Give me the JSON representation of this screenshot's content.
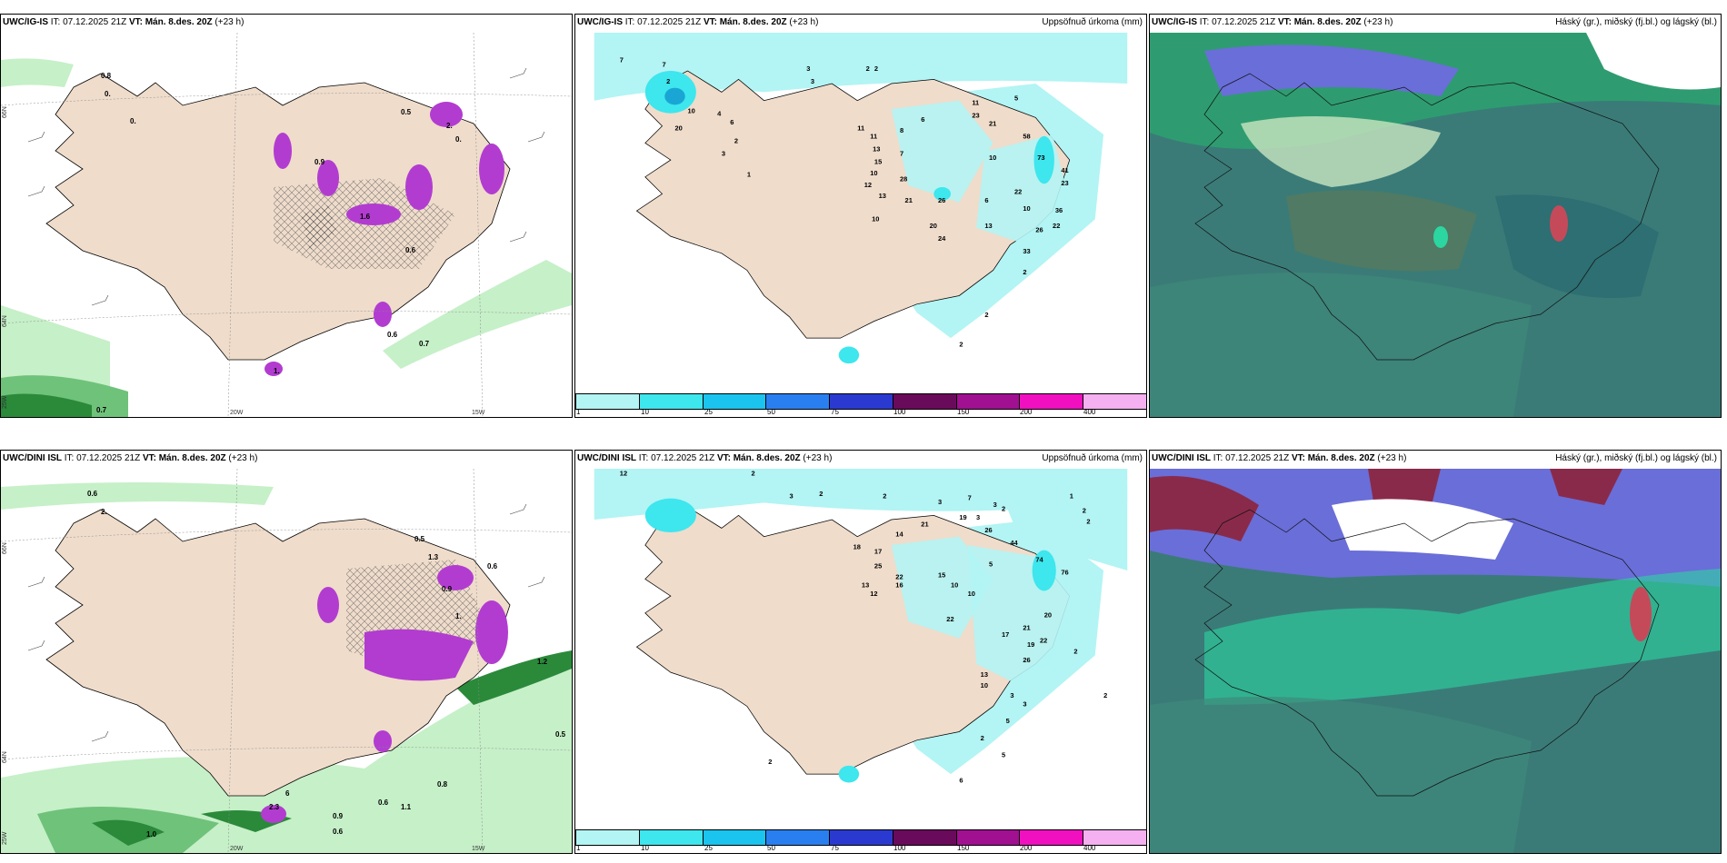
{
  "colors": {
    "land": "#efdccb",
    "sea": "#ffffff",
    "precip_light": "#b3f4f4",
    "precip_mid": "#3ee6ee",
    "purple": "#b23cd0",
    "green_light": "#c6f0c8",
    "green_dark": "#2a8a3a",
    "cloud_teal": "#3a7b78"
  },
  "icons": [
    "wind-barb-icon"
  ],
  "panels": [
    {
      "model": "UWC/IG-IS",
      "it": " IT: 07.12.2025 21Z ",
      "vt_label": "VT:",
      "vt_value": " Mán. 8.des. 20Z",
      "lead": " (+23 h)",
      "title_right": "",
      "lat_labels": [
        "66N",
        "64N",
        "25W"
      ],
      "lon_labels": [
        "20W",
        "15W"
      ],
      "values": [
        "0.8",
        "0.",
        "0.",
        "0.5",
        "2.",
        "0.",
        "0.7",
        "0.7",
        "0.6",
        "1.",
        "0.9",
        "1.6",
        "0.6"
      ]
    },
    {
      "model": "UWC/IG-IS",
      "it": " IT: 07.12.2025 21Z ",
      "vt_label": "VT:",
      "vt_value": " Mán. 8.des. 20Z",
      "lead": " (+23 h)",
      "title_right": "Uppsöfnuð úrkoma (mm)",
      "values": [
        "7",
        "7",
        "3",
        "3",
        "2",
        "2",
        "2",
        "10",
        "4",
        "6",
        "20",
        "2",
        "3",
        "1",
        "11",
        "11",
        "13",
        "15",
        "10",
        "12",
        "13",
        "28",
        "21",
        "8",
        "6",
        "7",
        "11",
        "23",
        "21",
        "10",
        "5",
        "58",
        "73",
        "41",
        "22",
        "23",
        "36",
        "26",
        "6",
        "10",
        "20",
        "24",
        "13",
        "33",
        "26",
        "22",
        "2",
        "10",
        "2",
        "2"
      ],
      "colorbar": [
        "1",
        "10",
        "25",
        "50",
        "75",
        "100",
        "150",
        "200",
        "400"
      ]
    },
    {
      "model": "UWC/IG-IS",
      "it": " IT: 07.12.2025 21Z ",
      "vt_label": "VT:",
      "vt_value": " Mán. 8.des. 20Z",
      "lead": " (+23 h)",
      "title_right": "Háský (gr.), miðský (fj.bl.) og lágský (bl.)"
    },
    {
      "model": "UWC/DINI ISL",
      "it": " IT: 07.12.2025 21Z ",
      "vt_label": "VT:",
      "vt_value": " Mán. 8.des. 20Z",
      "lead": " (+23 h)",
      "title_right": "",
      "lat_labels": [
        "66N",
        "64N",
        "25W"
      ],
      "lon_labels": [
        "20W",
        "15W"
      ],
      "values": [
        "0.6",
        "2.",
        "0.5",
        "1.3",
        "0.6",
        "0.9",
        "1.",
        "1.2",
        "0.5",
        "0.8",
        "0.6",
        "1.1",
        "0.9",
        "1.0",
        "0.6",
        "2.3",
        "6"
      ]
    },
    {
      "model": "UWC/DINI ISL",
      "it": " IT: 07.12.2025 21Z ",
      "vt_label": "VT:",
      "vt_value": " Mán. 8.des. 20Z",
      "lead": " (+23 h)",
      "title_right": "Uppsöfnuð úrkoma (mm)",
      "values": [
        "12",
        "2",
        "3",
        "2",
        "2",
        "3",
        "3",
        "3",
        "2",
        "1",
        "2",
        "2",
        "7",
        "19",
        "26",
        "44",
        "18",
        "17",
        "25",
        "14",
        "13",
        "12",
        "16",
        "22",
        "21",
        "15",
        "10",
        "10",
        "5",
        "22",
        "74",
        "76",
        "20",
        "21",
        "17",
        "19",
        "22",
        "26",
        "13",
        "10",
        "2",
        "3",
        "2",
        "5",
        "6",
        "2",
        "2",
        "3",
        "5"
      ],
      "colorbar": [
        "1",
        "10",
        "25",
        "50",
        "75",
        "100",
        "150",
        "200",
        "400"
      ]
    },
    {
      "model": "UWC/DINI ISL",
      "it": " IT: 07.12.2025 21Z ",
      "vt_label": "VT:",
      "vt_value": " Mán. 8.des. 20Z",
      "lead": " (+23 h)",
      "title_right": "Háský (gr.), miðský (fj.bl.) og lágský (bl.)"
    }
  ]
}
